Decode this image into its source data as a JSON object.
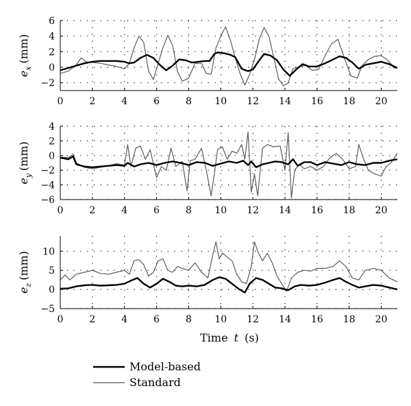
{
  "chart_data": [
    {
      "type": "line",
      "ylabel_var": "e",
      "ylabel_sub": "x",
      "ylabel_unit": "(mm)",
      "xlim": [
        0,
        21
      ],
      "ylim": [
        -3,
        6
      ],
      "yticks": [
        -2,
        0,
        2,
        4,
        6
      ],
      "xticks": [
        0,
        2,
        4,
        6,
        8,
        10,
        12,
        14,
        16,
        18,
        20
      ],
      "grid": "dotted",
      "series": [
        {
          "name": "Model-based",
          "x": [
            0,
            0.5,
            1,
            1.5,
            2,
            2.5,
            3,
            3.5,
            4,
            4.3,
            4.6,
            5.0,
            5.4,
            5.8,
            6.2,
            6.6,
            7.0,
            7.4,
            7.8,
            8.2,
            8.6,
            9.0,
            9.3,
            9.6,
            9.8,
            10.2,
            10.6,
            10.9,
            11.3,
            11.7,
            12.0,
            12.3,
            12.7,
            13.1,
            13.5,
            13.9,
            14.3,
            14.7,
            15.1,
            15.5,
            16.0,
            16.5,
            17.0,
            17.4,
            17.8,
            18.2,
            18.6,
            19.0,
            19.5,
            20.0,
            20.5,
            21.0
          ],
          "y": [
            -0.4,
            -0.1,
            0.2,
            0.5,
            0.7,
            0.8,
            0.8,
            0.8,
            0.7,
            0.5,
            0.6,
            1.2,
            1.6,
            1.2,
            0.3,
            -0.4,
            0.2,
            1.0,
            0.9,
            0.6,
            0.7,
            0.8,
            0.8,
            1.7,
            1.9,
            1.8,
            1.6,
            1.3,
            -0.2,
            -0.5,
            -0.3,
            0.6,
            1.7,
            1.5,
            0.9,
            -0.3,
            -1.1,
            -0.3,
            0.4,
            0.1,
            0.1,
            0.5,
            1.0,
            1.4,
            1.2,
            0.6,
            -0.2,
            0.3,
            0.5,
            0.7,
            0.4,
            -0.1
          ]
        },
        {
          "name": "Standard",
          "x": [
            0,
            0.5,
            1,
            1.3,
            1.6,
            2,
            2.5,
            3,
            3.5,
            4,
            4.3,
            4.6,
            4.9,
            5.2,
            5.5,
            5.8,
            6.1,
            6.4,
            6.7,
            7.0,
            7.3,
            7.6,
            8.0,
            8.4,
            8.8,
            9.1,
            9.4,
            9.7,
            10.0,
            10.3,
            10.6,
            10.9,
            11.2,
            11.5,
            11.8,
            12.1,
            12.4,
            12.7,
            13.0,
            13.3,
            13.6,
            13.9,
            14.2,
            14.5,
            14.9,
            15.3,
            15.7,
            16.1,
            16.5,
            16.9,
            17.3,
            17.7,
            18.1,
            18.5,
            18.8,
            19.2,
            19.6,
            20.0,
            20.4,
            20.8,
            21.0
          ],
          "y": [
            -0.8,
            -0.5,
            0.3,
            1.2,
            0.7,
            0.6,
            0.5,
            0.3,
            0.1,
            -0.2,
            0.5,
            2.5,
            4.0,
            3.2,
            -0.5,
            -1.6,
            0.5,
            2.5,
            4.1,
            2.8,
            -0.5,
            -1.8,
            -1.4,
            0.5,
            0.5,
            -0.8,
            -0.9,
            2.5,
            4.0,
            5.2,
            3.5,
            1.2,
            -0.8,
            -2.3,
            -0.9,
            1.0,
            3.6,
            5.1,
            4.0,
            1.3,
            -1.5,
            -2.4,
            -2.0,
            -0.2,
            0.1,
            0.2,
            -0.4,
            -0.3,
            1.5,
            3.0,
            3.6,
            1.2,
            -1.1,
            -1.4,
            0.2,
            1.0,
            1.4,
            1.5,
            0.9,
            -0.1,
            -0.1
          ]
        }
      ]
    },
    {
      "type": "line",
      "ylabel_var": "e",
      "ylabel_sub": "y",
      "ylabel_unit": "(mm)",
      "xlim": [
        0,
        21
      ],
      "ylim": [
        -6,
        4
      ],
      "yticks": [
        -6,
        -4,
        -2,
        0,
        2,
        4
      ],
      "xticks": [
        0,
        2,
        4,
        6,
        8,
        10,
        12,
        14,
        16,
        18,
        20
      ],
      "grid": "dotted",
      "series": [
        {
          "name": "Model-based",
          "x": [
            0,
            0.5,
            0.8,
            1,
            1.5,
            2,
            2.5,
            3,
            3.5,
            4,
            4.2,
            4.6,
            5,
            5.5,
            6,
            6.5,
            7,
            7.5,
            8,
            8.5,
            9,
            9.5,
            10,
            10.5,
            11,
            11.4,
            11.7,
            11.9,
            12.2,
            12.6,
            13,
            13.4,
            13.8,
            14.2,
            14.5,
            14.8,
            15.2,
            15.6,
            16,
            16.5,
            17,
            17.5,
            18,
            18.5,
            19,
            19.5,
            20,
            20.5,
            21
          ],
          "y": [
            -0.3,
            -0.5,
            -0.1,
            -1.2,
            -1.5,
            -1.6,
            -1.5,
            -1.4,
            -1.3,
            -1.4,
            -1.0,
            -1.5,
            -1.2,
            -1.0,
            -1.3,
            -1.0,
            -0.8,
            -1.0,
            -1.3,
            -0.9,
            -1.0,
            -1.4,
            -1.1,
            -0.8,
            -1.0,
            -0.7,
            -1.3,
            -0.8,
            -1.6,
            -1.2,
            -1.0,
            -0.8,
            -0.9,
            -1.2,
            -0.5,
            -1.4,
            -0.9,
            -0.9,
            -1.3,
            -0.9,
            -1.1,
            -1.3,
            -0.9,
            -1.2,
            -1.3,
            -1.0,
            -1.0,
            -0.7,
            -0.5
          ]
        },
        {
          "name": "Standard",
          "x": [
            0,
            0.5,
            0.8,
            1,
            1.5,
            2,
            2.5,
            3,
            3.5,
            4,
            4.2,
            4.4,
            4.7,
            5,
            5.3,
            5.6,
            6,
            6.3,
            6.6,
            6.9,
            7.2,
            7.6,
            7.9,
            8.1,
            8.4,
            8.8,
            9.1,
            9.4,
            9.6,
            9.8,
            10.1,
            10.4,
            10.7,
            11.0,
            11.3,
            11.5,
            11.7,
            11.9,
            12.1,
            12.3,
            12.6,
            12.9,
            13.3,
            13.7,
            14.0,
            14.2,
            14.4,
            14.6,
            14.9,
            15.2,
            15.6,
            16.0,
            16.4,
            16.8,
            17.2,
            17.6,
            18.0,
            18.4,
            18.6,
            18.9,
            19.2,
            19.6,
            20.0,
            20.3,
            20.6,
            21.0
          ],
          "y": [
            -0.2,
            -0.3,
            0.2,
            -1.0,
            -1.6,
            -1.8,
            -1.6,
            -1.4,
            -1.1,
            -1.3,
            1.5,
            -1.5,
            1.0,
            1.3,
            -0.5,
            0.8,
            -3.0,
            -1.5,
            -2.0,
            1.0,
            -1.5,
            -0.8,
            -4.8,
            -0.7,
            -0.5,
            1.0,
            -2.0,
            -5.5,
            -2.5,
            0.8,
            1.2,
            -0.5,
            0.6,
            0.3,
            1.5,
            -0.5,
            3.2,
            -5.0,
            -2.5,
            -5.5,
            1.0,
            1.5,
            1.2,
            1.3,
            -2.0,
            3.1,
            -5.8,
            -2.0,
            -1.2,
            -1.8,
            -1.5,
            -2.0,
            -1.5,
            -0.3,
            0.3,
            -0.5,
            -1.8,
            -1.5,
            1.5,
            -0.5,
            -2.0,
            -2.5,
            -2.8,
            -1.5,
            -1.0,
            0.3
          ]
        }
      ]
    },
    {
      "type": "line",
      "ylabel_var": "e",
      "ylabel_sub": "z",
      "ylabel_unit": "(mm)",
      "xlim": [
        0,
        21
      ],
      "ylim": [
        -5,
        14
      ],
      "yticks": [
        -5,
        0,
        5,
        10
      ],
      "xticks": [
        0,
        2,
        4,
        6,
        8,
        10,
        12,
        14,
        16,
        18,
        20
      ],
      "xlabel": "Time",
      "xlabel_var": "t",
      "xlabel_unit": "(s)",
      "grid": "dotted",
      "series": [
        {
          "name": "Model-based",
          "x": [
            0,
            0.5,
            1,
            1.5,
            2,
            2.5,
            3,
            3.5,
            4,
            4.5,
            4.8,
            5.2,
            5.6,
            6,
            6.4,
            6.8,
            7.2,
            7.6,
            8,
            8.5,
            9,
            9.5,
            9.9,
            10.3,
            10.7,
            11.1,
            11.5,
            11.8,
            12.2,
            12.6,
            13,
            13.4,
            13.8,
            14.2,
            14.6,
            15,
            15.5,
            16,
            16.5,
            17,
            17.4,
            17.8,
            18.2,
            18.6,
            19,
            19.5,
            20,
            20.5,
            21
          ],
          "y": [
            0.2,
            0.3,
            0.8,
            1.1,
            1.2,
            1.0,
            1.1,
            1.2,
            1.5,
            2.5,
            3.0,
            1.5,
            0.5,
            1.5,
            2.8,
            2.0,
            1.0,
            0.8,
            1.0,
            0.8,
            1.2,
            2.5,
            3.2,
            2.8,
            1.5,
            0.2,
            -0.8,
            1.5,
            3.0,
            2.5,
            1.5,
            0.5,
            0.3,
            -0.2,
            0.8,
            1.2,
            1.0,
            1.2,
            1.8,
            2.5,
            3.0,
            2.0,
            1.2,
            0.5,
            0.8,
            1.2,
            1.0,
            0.5,
            0.0
          ]
        },
        {
          "name": "Standard",
          "x": [
            0,
            0.3,
            0.6,
            1,
            1.5,
            2,
            2.5,
            3,
            3.5,
            4,
            4.3,
            4.6,
            4.9,
            5.2,
            5.5,
            5.8,
            6.1,
            6.4,
            6.7,
            7,
            7.3,
            7.6,
            8,
            8.4,
            8.8,
            9.2,
            9.5,
            9.7,
            9.9,
            10.1,
            10.4,
            10.7,
            11,
            11.3,
            11.6,
            11.9,
            12.1,
            12.3,
            12.6,
            12.9,
            13.2,
            13.5,
            13.8,
            14.1,
            14.4,
            14.8,
            15.2,
            15.6,
            16,
            16.5,
            17,
            17.4,
            17.8,
            18.2,
            18.6,
            19,
            19.5,
            20,
            20.5,
            21
          ],
          "y": [
            2.5,
            3.8,
            2.5,
            4.0,
            4.5,
            5.0,
            4.2,
            4.0,
            4.5,
            5.0,
            4.0,
            7.5,
            7.8,
            6.5,
            3.5,
            4.5,
            7.5,
            8.0,
            5.0,
            4.5,
            6.0,
            5.5,
            5.0,
            7.0,
            4.5,
            3.0,
            9.0,
            12.5,
            8.0,
            9.5,
            8.5,
            7.5,
            4.0,
            2.0,
            1.5,
            6.0,
            12.5,
            10.0,
            7.5,
            9.5,
            7.0,
            3.5,
            1.5,
            -0.5,
            3.0,
            4.5,
            5.0,
            4.8,
            5.5,
            5.5,
            6.0,
            7.5,
            6.0,
            3.0,
            2.5,
            5.0,
            5.5,
            5.0,
            3.0,
            2.0
          ]
        }
      ]
    }
  ],
  "legend": {
    "items": [
      {
        "label": "Model-based",
        "color": "#000000",
        "width": 2.6
      },
      {
        "label": "Standard",
        "color": "#555555",
        "width": 1.2
      }
    ],
    "placement": "bottom-left"
  },
  "colors": {
    "model_based": "#000000",
    "standard": "#5a5a5a",
    "grid": "#000000"
  }
}
